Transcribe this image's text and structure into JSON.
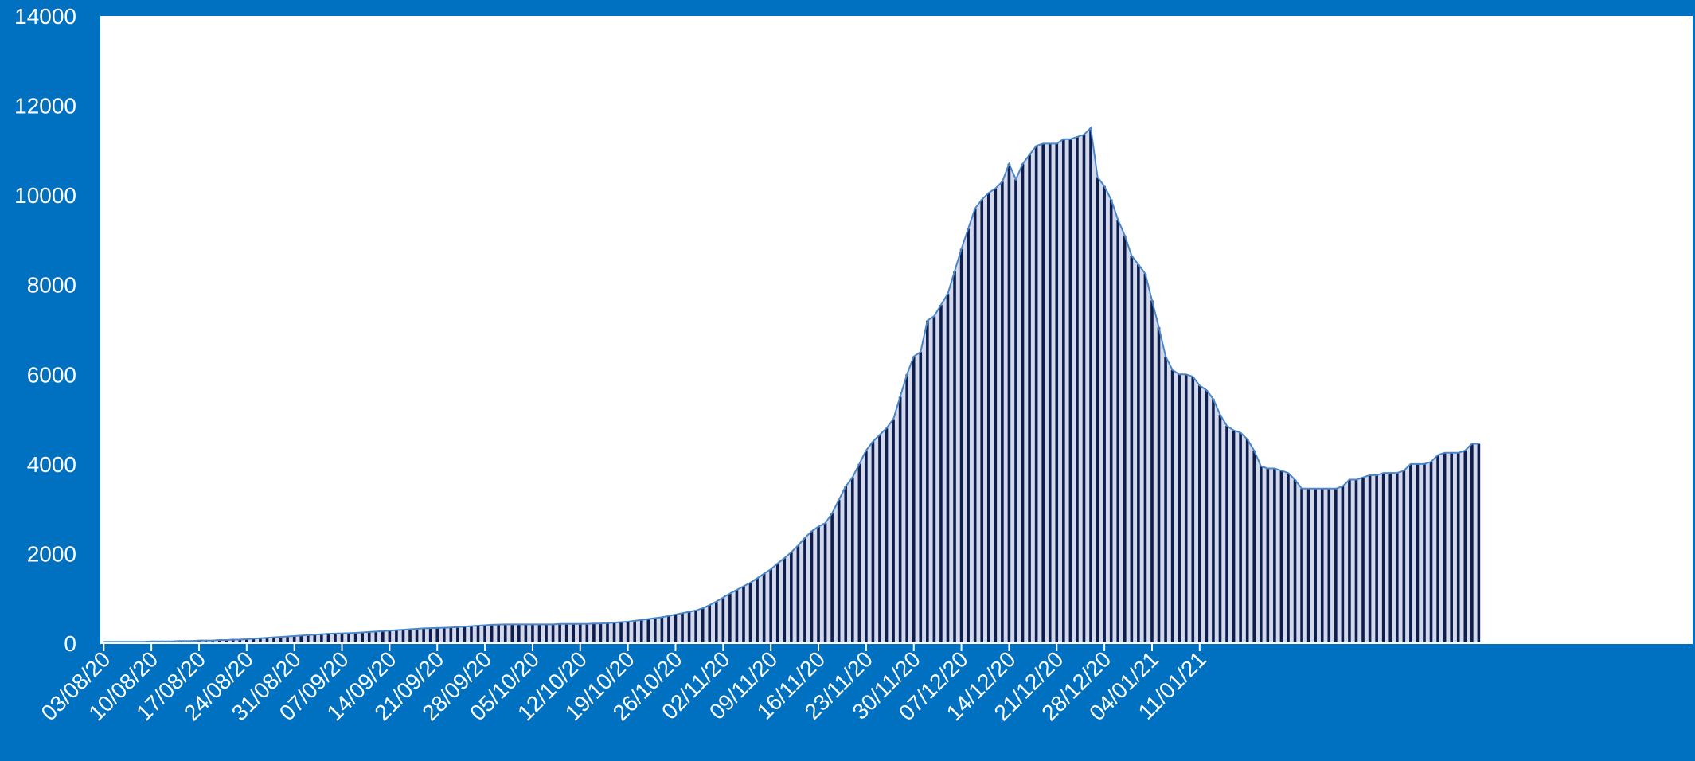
{
  "colors": {
    "background": "#0070C0",
    "plot_area": "#FFFFFF",
    "bar_fill": "#0D1D4E",
    "bar_edge": "#1F3C7A",
    "area_fill": "#D3D9EA",
    "line": "#4A86C8",
    "text": "#FFFFFF"
  },
  "chart_data": {
    "type": "bar",
    "title": "",
    "xlabel": "",
    "ylabel": "",
    "ylim": [
      0,
      14000
    ],
    "y_ticks": [
      "0",
      "2000",
      "4000",
      "6000",
      "8000",
      "10000",
      "12000",
      "14000"
    ],
    "x_tick_labels": [
      "03/08/20",
      "10/08/20",
      "17/08/20",
      "24/08/20",
      "31/08/20",
      "07/09/20",
      "14/09/20",
      "21/09/20",
      "28/09/20",
      "05/10/20",
      "12/10/20",
      "19/10/20",
      "26/10/20",
      "02/11/20",
      "09/11/20",
      "16/11/20",
      "23/11/20",
      "30/11/20",
      "07/12/20",
      "14/12/20",
      "21/12/20",
      "28/12/20",
      "04/01/21",
      "11/01/21"
    ],
    "grid": false,
    "legend": "none",
    "overlay": "line and shaded area following the same daily values",
    "x_start": "03/08/20",
    "x_end": "14/01/21",
    "values": [
      30,
      30,
      30,
      30,
      30,
      30,
      30,
      40,
      40,
      40,
      40,
      50,
      50,
      50,
      60,
      60,
      60,
      70,
      70,
      80,
      80,
      90,
      100,
      110,
      120,
      130,
      140,
      150,
      160,
      170,
      180,
      190,
      200,
      210,
      215,
      220,
      225,
      230,
      240,
      250,
      260,
      270,
      280,
      290,
      300,
      310,
      320,
      330,
      335,
      340,
      345,
      350,
      360,
      370,
      380,
      390,
      400,
      410,
      415,
      420,
      420,
      420,
      420,
      420,
      420,
      420,
      420,
      430,
      430,
      430,
      430,
      430,
      440,
      440,
      450,
      460,
      470,
      480,
      500,
      520,
      540,
      560,
      580,
      610,
      640,
      670,
      700,
      730,
      780,
      850,
      930,
      1020,
      1110,
      1190,
      1270,
      1350,
      1450,
      1550,
      1650,
      1780,
      1900,
      2030,
      2180,
      2350,
      2500,
      2600,
      2680,
      2900,
      3200,
      3500,
      3700,
      4000,
      4300,
      4500,
      4650,
      4800,
      5000,
      5500,
      6000,
      6400,
      6500,
      7200,
      7300,
      7550,
      7800,
      8300,
      8800,
      9250,
      9700,
      9900,
      10050,
      10150,
      10300,
      10700,
      10350,
      10700,
      10900,
      11100,
      11150,
      11150,
      11150,
      11250,
      11250,
      11300,
      11350,
      11500,
      10400,
      10200,
      9900,
      9450,
      9100,
      8650,
      8450,
      8250,
      7650,
      7050,
      6400,
      6100,
      6000,
      6000,
      5950,
      5750,
      5650,
      5450,
      5100,
      4850,
      4750,
      4700,
      4550,
      4300,
      3950,
      3900,
      3900,
      3850,
      3800,
      3650,
      3450,
      3450,
      3450,
      3450,
      3450,
      3450,
      3500,
      3650,
      3650,
      3700,
      3750,
      3750,
      3800,
      3800,
      3800,
      3850,
      4000,
      4000,
      4000,
      4050,
      4200,
      4250,
      4250,
      4250,
      4300,
      4450,
      4450
    ]
  }
}
